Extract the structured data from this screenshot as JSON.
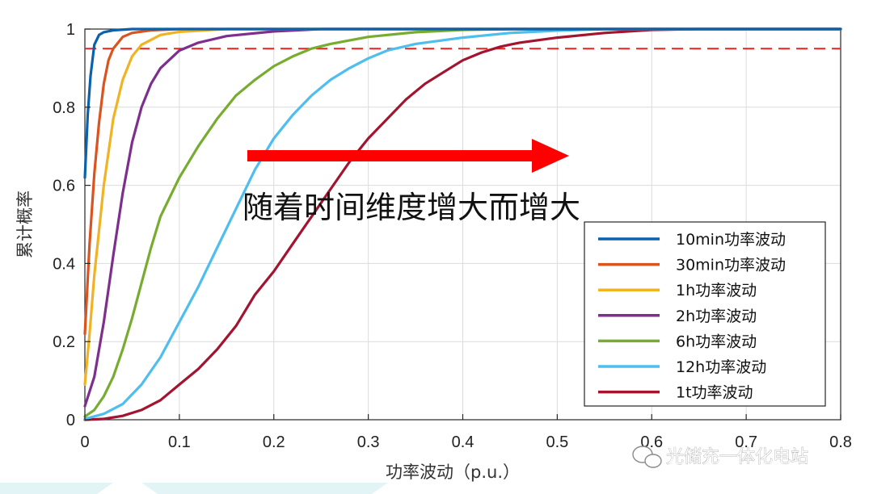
{
  "chart_data": {
    "type": "line",
    "title": "",
    "xlabel": "功率波动（p.u.）",
    "ylabel": "累计概率",
    "xlim": [
      0,
      0.8
    ],
    "ylim": [
      0,
      1
    ],
    "x_ticks": [
      "0",
      "0.1",
      "0.2",
      "0.3",
      "0.4",
      "0.5",
      "0.6",
      "0.7",
      "0.8"
    ],
    "y_ticks": [
      "0",
      "0.2",
      "0.4",
      "0.6",
      "0.8",
      "1"
    ],
    "grid": true,
    "legend_position": "lower-right",
    "reference_line": {
      "y": 0.95,
      "style": "dashed",
      "color": "#e8231f"
    },
    "annotation": {
      "text": "随着时间维度增大而增大",
      "arrow": "right",
      "arrow_color": "#ff0000"
    },
    "series": [
      {
        "name": "10min功率波动",
        "color": "#0a62ad",
        "points": [
          [
            0,
            0.62
          ],
          [
            0.003,
            0.78
          ],
          [
            0.006,
            0.88
          ],
          [
            0.01,
            0.96
          ],
          [
            0.015,
            0.985
          ],
          [
            0.02,
            0.992
          ],
          [
            0.03,
            0.997
          ],
          [
            0.05,
            1.0
          ],
          [
            0.8,
            1.0
          ]
        ]
      },
      {
        "name": "30min功率波动",
        "color": "#d9541e",
        "points": [
          [
            0,
            0.22
          ],
          [
            0.005,
            0.45
          ],
          [
            0.01,
            0.63
          ],
          [
            0.015,
            0.76
          ],
          [
            0.02,
            0.86
          ],
          [
            0.025,
            0.92
          ],
          [
            0.03,
            0.95
          ],
          [
            0.04,
            0.98
          ],
          [
            0.05,
            0.99
          ],
          [
            0.07,
            0.997
          ],
          [
            0.1,
            1.0
          ],
          [
            0.8,
            1.0
          ]
        ]
      },
      {
        "name": "1h功率波动",
        "color": "#efb324",
        "points": [
          [
            0,
            0.09
          ],
          [
            0.005,
            0.22
          ],
          [
            0.01,
            0.37
          ],
          [
            0.02,
            0.6
          ],
          [
            0.03,
            0.77
          ],
          [
            0.04,
            0.87
          ],
          [
            0.05,
            0.93
          ],
          [
            0.06,
            0.96
          ],
          [
            0.08,
            0.985
          ],
          [
            0.1,
            0.993
          ],
          [
            0.15,
            1.0
          ],
          [
            0.8,
            1.0
          ]
        ]
      },
      {
        "name": "2h功率波动",
        "color": "#7e2f8e",
        "points": [
          [
            0,
            0.035
          ],
          [
            0.01,
            0.11
          ],
          [
            0.02,
            0.25
          ],
          [
            0.03,
            0.42
          ],
          [
            0.04,
            0.58
          ],
          [
            0.05,
            0.71
          ],
          [
            0.06,
            0.8
          ],
          [
            0.07,
            0.86
          ],
          [
            0.08,
            0.9
          ],
          [
            0.1,
            0.945
          ],
          [
            0.12,
            0.965
          ],
          [
            0.15,
            0.982
          ],
          [
            0.2,
            0.994
          ],
          [
            0.25,
            1.0
          ],
          [
            0.8,
            1.0
          ]
        ]
      },
      {
        "name": "6h功率波动",
        "color": "#77ac30",
        "points": [
          [
            0,
            0.008
          ],
          [
            0.01,
            0.025
          ],
          [
            0.02,
            0.06
          ],
          [
            0.03,
            0.11
          ],
          [
            0.04,
            0.18
          ],
          [
            0.05,
            0.26
          ],
          [
            0.06,
            0.35
          ],
          [
            0.07,
            0.44
          ],
          [
            0.08,
            0.52
          ],
          [
            0.1,
            0.62
          ],
          [
            0.12,
            0.7
          ],
          [
            0.14,
            0.77
          ],
          [
            0.16,
            0.83
          ],
          [
            0.18,
            0.87
          ],
          [
            0.2,
            0.905
          ],
          [
            0.22,
            0.93
          ],
          [
            0.24,
            0.95
          ],
          [
            0.26,
            0.962
          ],
          [
            0.3,
            0.98
          ],
          [
            0.35,
            0.992
          ],
          [
            0.4,
            0.998
          ],
          [
            0.45,
            1.0
          ],
          [
            0.8,
            1.0
          ]
        ]
      },
      {
        "name": "12h功率波动",
        "color": "#4dbeee",
        "points": [
          [
            0,
            0.002
          ],
          [
            0.02,
            0.015
          ],
          [
            0.04,
            0.04
          ],
          [
            0.06,
            0.09
          ],
          [
            0.08,
            0.16
          ],
          [
            0.1,
            0.25
          ],
          [
            0.12,
            0.34
          ],
          [
            0.14,
            0.44
          ],
          [
            0.16,
            0.54
          ],
          [
            0.18,
            0.64
          ],
          [
            0.2,
            0.72
          ],
          [
            0.22,
            0.78
          ],
          [
            0.24,
            0.83
          ],
          [
            0.26,
            0.87
          ],
          [
            0.28,
            0.9
          ],
          [
            0.3,
            0.925
          ],
          [
            0.32,
            0.945
          ],
          [
            0.35,
            0.962
          ],
          [
            0.4,
            0.978
          ],
          [
            0.45,
            0.99
          ],
          [
            0.5,
            0.996
          ],
          [
            0.55,
            1.0
          ],
          [
            0.8,
            1.0
          ]
        ]
      },
      {
        "name": "1t功率波动",
        "color": "#a2142f",
        "points": [
          [
            0,
            0.0
          ],
          [
            0.02,
            0.002
          ],
          [
            0.04,
            0.01
          ],
          [
            0.06,
            0.025
          ],
          [
            0.08,
            0.05
          ],
          [
            0.1,
            0.09
          ],
          [
            0.12,
            0.13
          ],
          [
            0.14,
            0.18
          ],
          [
            0.16,
            0.24
          ],
          [
            0.18,
            0.32
          ],
          [
            0.2,
            0.38
          ],
          [
            0.22,
            0.45
          ],
          [
            0.24,
            0.52
          ],
          [
            0.26,
            0.59
          ],
          [
            0.28,
            0.66
          ],
          [
            0.3,
            0.72
          ],
          [
            0.32,
            0.77
          ],
          [
            0.34,
            0.82
          ],
          [
            0.36,
            0.86
          ],
          [
            0.38,
            0.89
          ],
          [
            0.4,
            0.92
          ],
          [
            0.42,
            0.94
          ],
          [
            0.44,
            0.955
          ],
          [
            0.46,
            0.965
          ],
          [
            0.5,
            0.978
          ],
          [
            0.55,
            0.99
          ],
          [
            0.6,
            0.998
          ],
          [
            0.65,
            1.0
          ],
          [
            0.8,
            1.0
          ]
        ]
      }
    ]
  },
  "watermark": {
    "text": "光储充一体化电站",
    "icon": "wechat-icon"
  }
}
